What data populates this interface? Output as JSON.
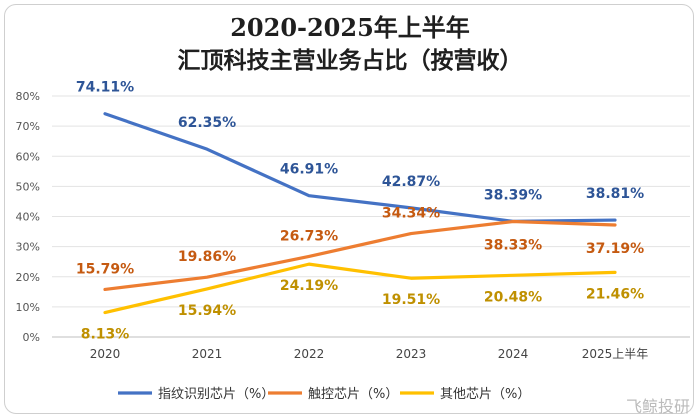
{
  "chart_data": {
    "type": "line",
    "title_line1": "2020-2025年上半年",
    "title_line2": "汇顶科技主营业务占比（按营收）",
    "categories": [
      "2020",
      "2021",
      "2022",
      "2023",
      "2024",
      "2025上半年"
    ],
    "ylim": [
      0,
      80
    ],
    "yticks": [
      "0%",
      "10%",
      "20%",
      "30%",
      "40%",
      "50%",
      "60%",
      "70%",
      "80%"
    ],
    "grid": true,
    "legend_position": "bottom",
    "series": [
      {
        "name": "指纹识别芯片（%）",
        "color": "#4472C4",
        "values": [
          74.11,
          62.35,
          46.91,
          42.87,
          38.39,
          38.81
        ],
        "labels": [
          "74.11%",
          "62.35%",
          "46.91%",
          "42.87%",
          "38.39%",
          "38.81%"
        ],
        "label_color": "#2E5597"
      },
      {
        "name": "触控芯片（%）",
        "color": "#ED7D31",
        "values": [
          15.79,
          19.86,
          26.73,
          34.34,
          38.33,
          37.19
        ],
        "labels": [
          "15.79%",
          "19.86%",
          "26.73%",
          "34.34%",
          "38.33%",
          "37.19%"
        ],
        "label_color": "#C55A11"
      },
      {
        "name": "其他芯片（%）",
        "color": "#FFC000",
        "values": [
          8.13,
          15.94,
          24.19,
          19.51,
          20.48,
          21.46
        ],
        "labels": [
          "8.13%",
          "15.94%",
          "24.19%",
          "19.51%",
          "20.48%",
          "21.46%"
        ],
        "label_color": "#BF9000"
      }
    ]
  },
  "watermark": "飞鲸投研"
}
